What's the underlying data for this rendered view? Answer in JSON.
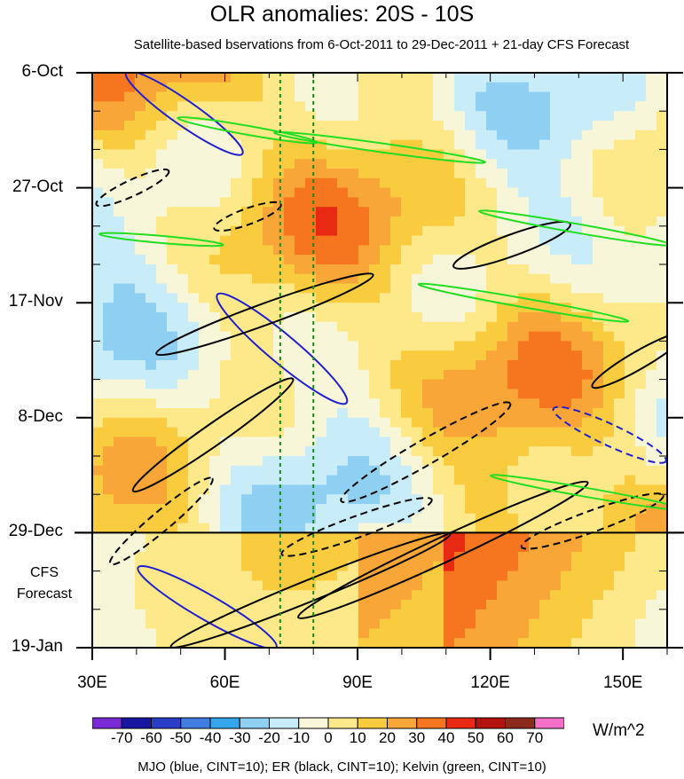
{
  "title": "OLR anomalies: 20S - 10S",
  "subtitle": "Satellite-based bservations from 6-Oct-2011 to 29-Dec-2011 + 21-day CFS Forecast",
  "cfs_label_line1": "CFS",
  "cfs_label_line2": "Forecast",
  "units": "W/m^2",
  "footnote": "MJO (blue, CINT=10); ER (black, CINT=10); Kelvin (green, CINT=10)",
  "colors": {
    "mjo": "#2020d0",
    "er": "#000000",
    "kelvin": "#22dd22",
    "reference_lines": "#1a8a1a"
  },
  "chart_data": {
    "type": "heatmap",
    "title": "OLR anomalies: 20S - 10S",
    "x_axis": {
      "range_degE": [
        30,
        160
      ],
      "ticks": [
        "30E",
        "60E",
        "90E",
        "120E",
        "150E"
      ],
      "tick_values": [
        30,
        60,
        90,
        120,
        150
      ]
    },
    "y_axis": {
      "ticks": [
        "6-Oct",
        "27-Oct",
        "17-Nov",
        "8-Dec",
        "29-Dec",
        "19-Jan"
      ],
      "inverted": true
    },
    "forecast_start": "29-Dec",
    "reference_longitudes": [
      72.5,
      80
    ],
    "colorbar": {
      "labels": [
        "-70",
        "-60",
        "-50",
        "-40",
        "-30",
        "-20",
        "-10",
        "0",
        "10",
        "20",
        "30",
        "40",
        "50",
        "60",
        "70"
      ],
      "colors": [
        "#7a2bd6",
        "#1616a0",
        "#2b3ec8",
        "#3f7ee0",
        "#35a6ec",
        "#8fd0f2",
        "#c8ecf8",
        "#f8f6d8",
        "#fde98a",
        "#f9cc40",
        "#f9a638",
        "#f5761f",
        "#e82a14",
        "#b3120e",
        "#8c2a1c",
        "#f46fc8"
      ]
    }
  }
}
